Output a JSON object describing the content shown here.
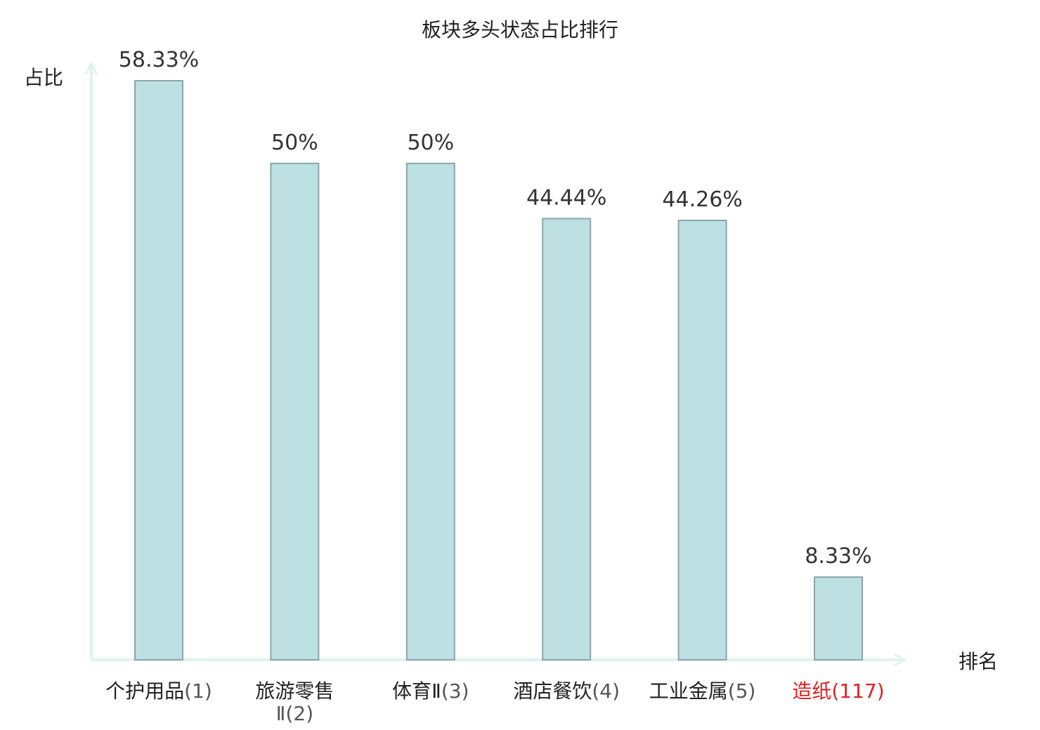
{
  "chart_data": {
    "type": "bar",
    "title": "板块多头状态占比排行",
    "xlabel": "排名",
    "ylabel": "占比",
    "ylim": [
      0,
      58.33
    ],
    "grid": false,
    "categories": [
      {
        "name": "个护用品",
        "rank": "(1)",
        "highlight": false
      },
      {
        "name": "旅游零售Ⅱ",
        "rank": "(2)",
        "highlight": false
      },
      {
        "name": "体育Ⅱ",
        "rank": "(3)",
        "highlight": false
      },
      {
        "name": "酒店餐饮",
        "rank": "(4)",
        "highlight": false
      },
      {
        "name": "工业金属",
        "rank": "(5)",
        "highlight": false
      },
      {
        "name": "造纸",
        "rank": "(117)",
        "highlight": true
      }
    ],
    "values": [
      58.33,
      50,
      50,
      44.44,
      44.26,
      8.33
    ],
    "value_labels": [
      "58.33%",
      "50%",
      "50%",
      "44.44%",
      "44.26%",
      "8.33%"
    ],
    "colors": {
      "bar_fill": "#bde0e3",
      "bar_stroke": "#8aa6a9",
      "axis": "#e0f2ef",
      "label_text": "#333333",
      "highlight_text": "#e02020"
    }
  }
}
